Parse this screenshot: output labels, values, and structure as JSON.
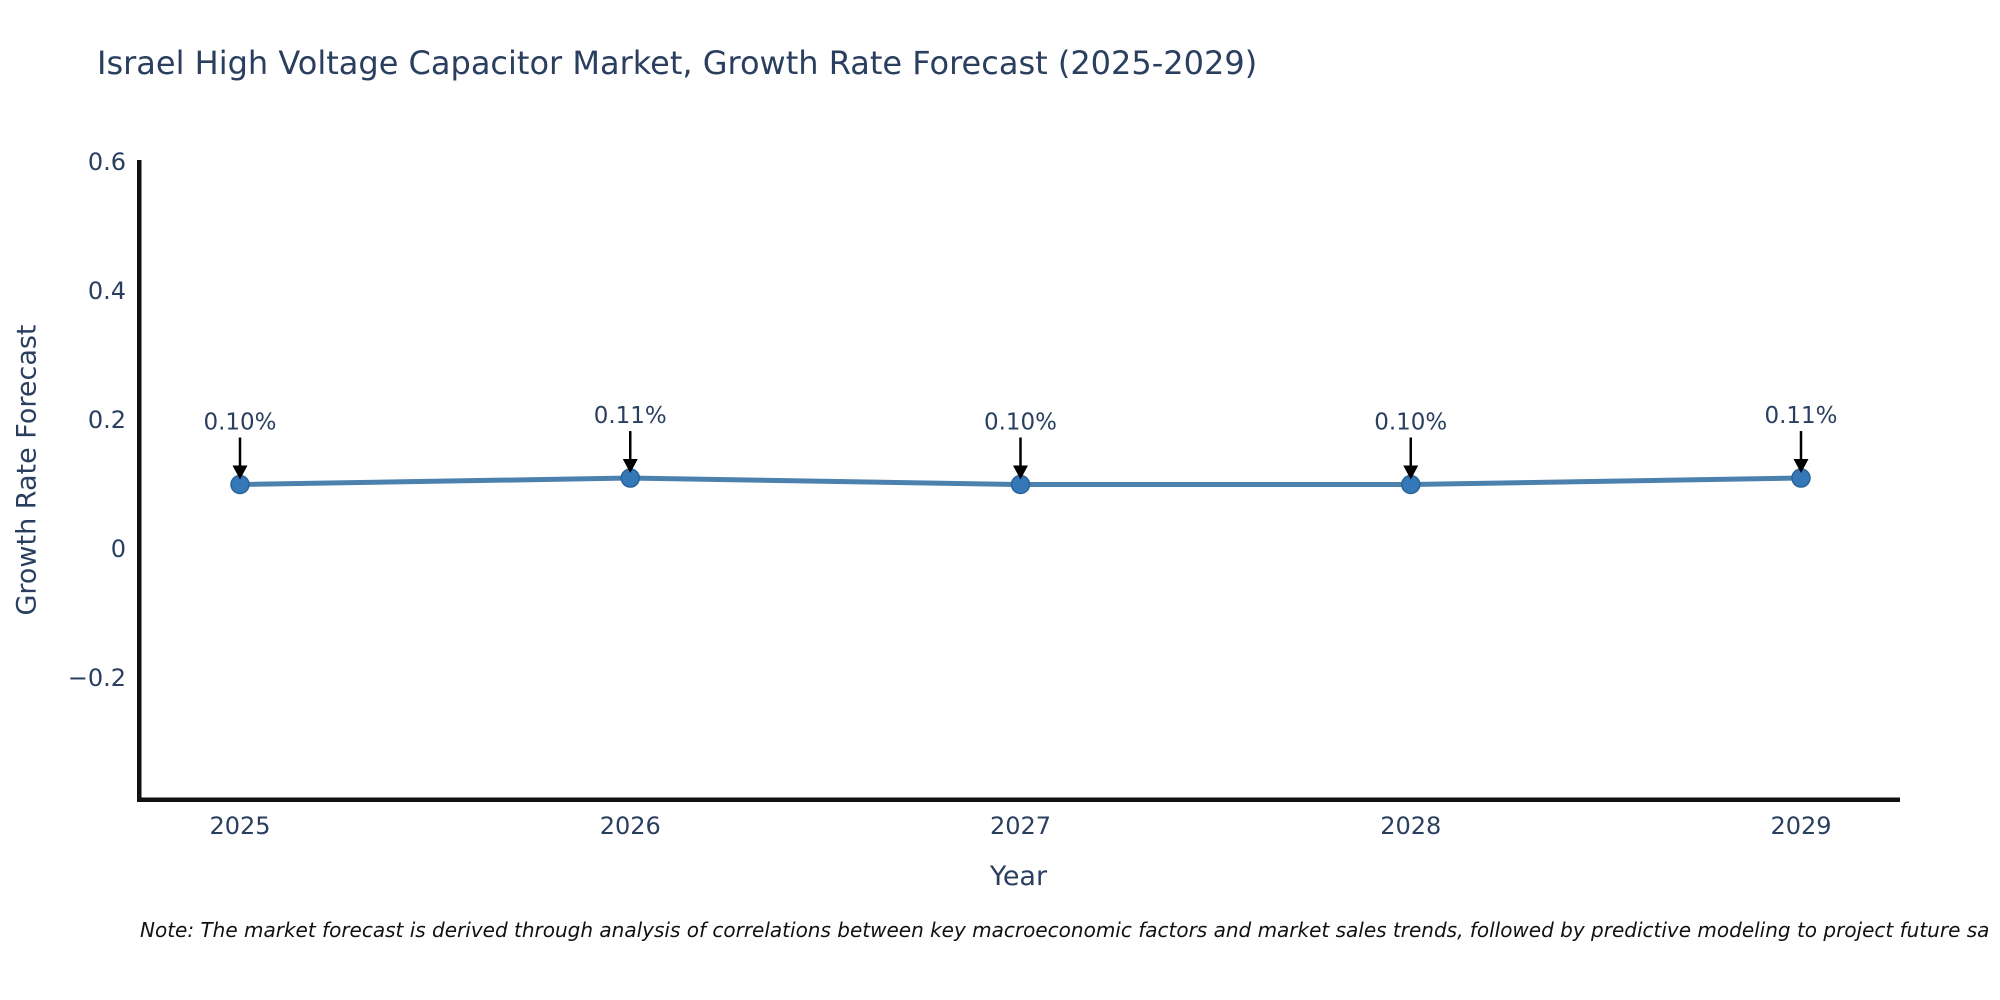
{
  "title": {
    "text": "Israel High Voltage Capacitor Market, Growth Rate Forecast (2025-2029)",
    "color": "#2a3f5f"
  },
  "note": {
    "text": "Note: The market forecast is derived through analysis of correlations between key macroeconomic factors and market sales trends, followed by predictive modeling to project future sa"
  },
  "chart_data": {
    "type": "line",
    "x": [
      "2025",
      "2026",
      "2027",
      "2028",
      "2029"
    ],
    "series": [
      {
        "name": "Growth Rate Forecast",
        "values": [
          0.1,
          0.11,
          0.1,
          0.1,
          0.11
        ]
      }
    ],
    "point_labels": [
      "0.10%",
      "0.11%",
      "0.10%",
      "0.10%",
      "0.11%"
    ],
    "title": "Israel High Voltage Capacitor Market, Growth Rate Forecast (2025-2029)",
    "xlabel": "Year",
    "ylabel": "Growth Rate Forecast",
    "yticks": [
      0.6,
      0.4,
      0.2,
      0,
      -0.2
    ],
    "ylim": [
      -0.39,
      0.6
    ],
    "grid": false,
    "legend_position": "none",
    "colors": {
      "line": "#4c80ad",
      "marker": "#3478b8",
      "marker_edge": "#2a6399",
      "axis_spine": "#111111",
      "tick_text": "#2a3f5f",
      "annotation_text": "#2a3f5f",
      "annotation_arrow": "#000000"
    }
  }
}
